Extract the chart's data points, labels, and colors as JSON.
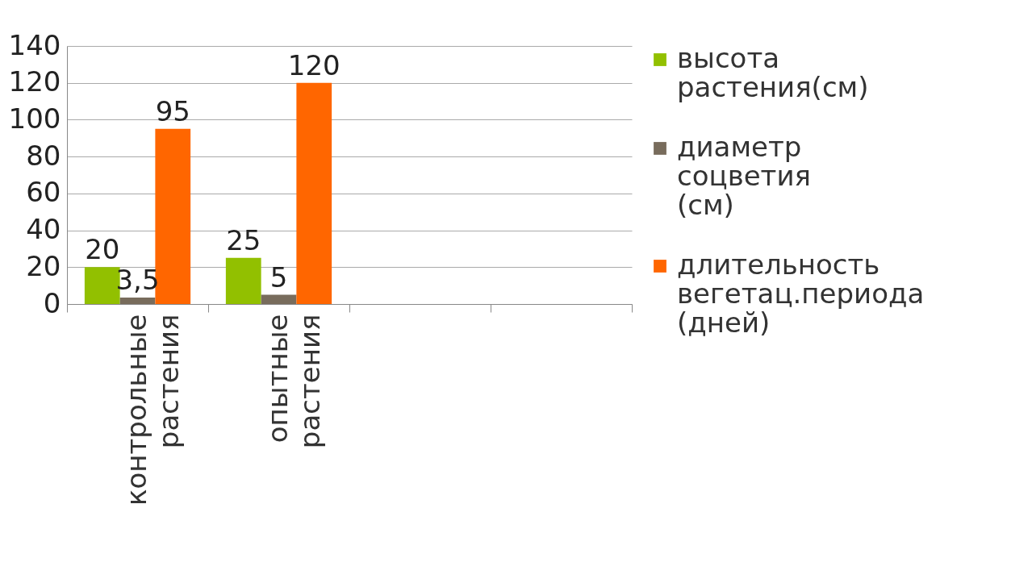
{
  "chart_data": {
    "type": "bar",
    "categories": [
      "контрольные растения",
      "опытные растения",
      null,
      null
    ],
    "series": [
      {
        "name": "высота растения(см)",
        "color": "#92c000",
        "values": [
          20,
          25,
          null,
          null
        ],
        "value_labels": [
          "20",
          "25",
          null,
          null
        ]
      },
      {
        "name": "диаметр соцветия (см)",
        "color": "#786c5c",
        "values": [
          3.5,
          5,
          null,
          null
        ],
        "value_labels": [
          "3,5",
          "5",
          null,
          null
        ]
      },
      {
        "name": "длительность вегетац.периода (дней)",
        "color": "#ff6600",
        "values": [
          95,
          120,
          null,
          null
        ],
        "value_labels": [
          "95",
          "120",
          null,
          null
        ]
      }
    ],
    "ylim": [
      0,
      140
    ],
    "yticks": [
      0,
      20,
      40,
      60,
      80,
      100,
      120,
      140
    ],
    "grid": "y",
    "legend": "right"
  }
}
